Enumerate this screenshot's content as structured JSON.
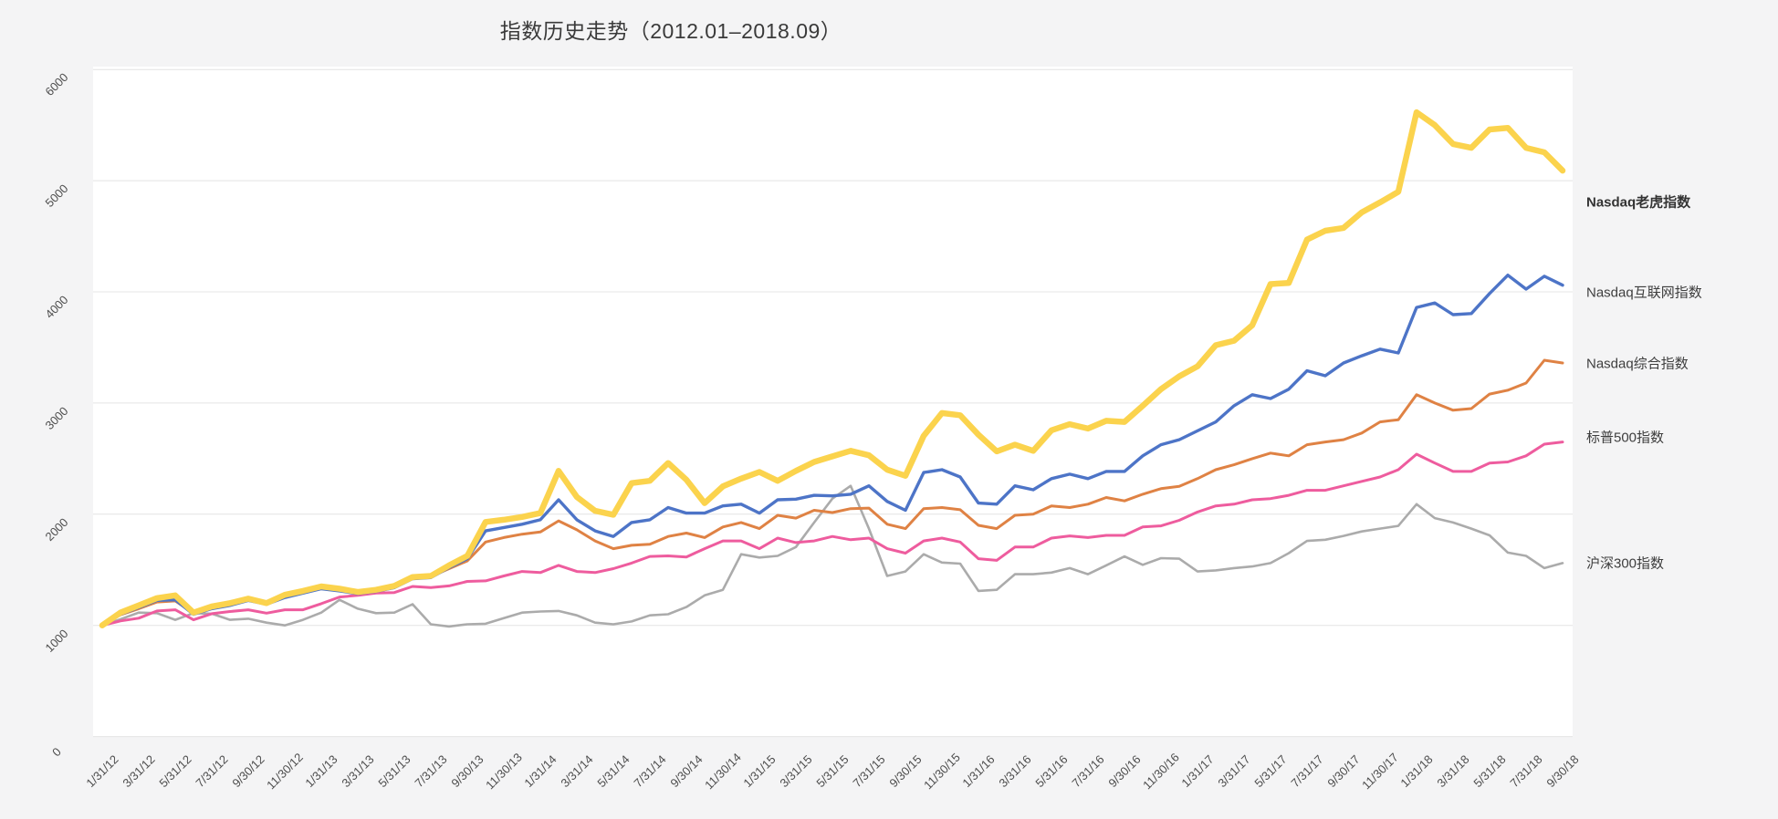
{
  "page": {
    "title": "指数历史走势（2012.01–2018.09）",
    "background_color": "#f4f4f5",
    "plot_background_color": "#ffffff",
    "gridline_color": "#e4e4e4"
  },
  "chart_data": {
    "type": "line",
    "title": "指数历史走势（2012.01–2018.09）",
    "xlabel": "",
    "ylabel": "",
    "ylim": [
      0,
      6000
    ],
    "y_ticks": [
      0,
      1000,
      2000,
      3000,
      4000,
      5000,
      6000
    ],
    "grid": "horizontal",
    "legend_position": "right-of-line-ends",
    "x": [
      "1/31/12",
      "2/29/12",
      "3/31/12",
      "4/30/12",
      "5/31/12",
      "6/30/12",
      "7/31/12",
      "8/31/12",
      "9/30/12",
      "10/31/12",
      "11/30/12",
      "12/31/12",
      "1/31/13",
      "2/28/13",
      "3/31/13",
      "4/30/13",
      "5/31/13",
      "6/30/13",
      "7/31/13",
      "8/31/13",
      "9/30/13",
      "10/31/13",
      "11/30/13",
      "12/31/13",
      "1/31/14",
      "2/28/14",
      "3/31/14",
      "4/30/14",
      "5/31/14",
      "6/30/14",
      "7/31/14",
      "8/31/14",
      "9/30/14",
      "10/31/14",
      "11/30/14",
      "12/31/14",
      "1/31/15",
      "2/28/15",
      "3/31/15",
      "4/30/15",
      "5/31/15",
      "6/30/15",
      "7/31/15",
      "8/31/15",
      "9/30/15",
      "10/31/15",
      "11/30/15",
      "12/31/15",
      "1/31/16",
      "2/29/16",
      "3/31/16",
      "4/30/16",
      "5/31/16",
      "6/30/16",
      "7/31/16",
      "8/31/16",
      "9/30/16",
      "10/31/16",
      "11/30/16",
      "12/31/16",
      "1/31/17",
      "2/28/17",
      "3/31/17",
      "4/30/17",
      "5/31/17",
      "6/30/17",
      "7/31/17",
      "8/31/17",
      "9/30/17",
      "10/31/17",
      "11/30/17",
      "12/31/17",
      "1/31/18",
      "2/28/18",
      "3/31/18",
      "4/30/18",
      "5/31/18",
      "6/30/18",
      "7/31/18",
      "8/31/18",
      "9/30/18"
    ],
    "x_tick_labels": [
      "1/31/12",
      "3/31/12",
      "5/31/12",
      "7/31/12",
      "9/30/12",
      "11/30/12",
      "1/31/13",
      "3/31/13",
      "5/31/13",
      "7/31/13",
      "9/30/13",
      "11/30/13",
      "1/31/14",
      "3/31/14",
      "5/31/14",
      "7/31/14",
      "9/30/14",
      "11/30/14",
      "1/31/15",
      "3/31/15",
      "5/31/15",
      "7/31/15",
      "9/30/15",
      "11/30/15",
      "1/31/16",
      "3/31/16",
      "5/31/16",
      "7/31/16",
      "9/30/16",
      "11/30/16",
      "1/31/17",
      "3/31/17",
      "5/31/17",
      "7/31/17",
      "9/30/17",
      "11/30/17",
      "1/31/18",
      "3/31/18",
      "5/31/18",
      "7/31/18",
      "9/30/18"
    ],
    "series": [
      {
        "name": "沪深300指数",
        "color": "#ababab",
        "line_width": 2.6,
        "bold_label": false,
        "values": [
          1000,
          1055,
          1115,
          1110,
          1050,
          1110,
          1105,
          1050,
          1060,
          1025,
          1000,
          1050,
          1115,
          1230,
          1150,
          1110,
          1115,
          1190,
          1010,
          990,
          1010,
          1015,
          1065,
          1115,
          1125,
          1130,
          1090,
          1025,
          1010,
          1035,
          1090,
          1100,
          1165,
          1270,
          1320,
          1640,
          1610,
          1625,
          1705,
          1925,
          2140,
          2255,
          1870,
          1445,
          1485,
          1640,
          1565,
          1555,
          1310,
          1320,
          1460,
          1460,
          1475,
          1515,
          1460,
          1540,
          1620,
          1545,
          1605,
          1600,
          1485,
          1495,
          1515,
          1530,
          1560,
          1650,
          1760,
          1770,
          1805,
          1845,
          1870,
          1895,
          2090,
          1965,
          1925,
          1870,
          1810,
          1655,
          1625,
          1515,
          1560
        ]
      },
      {
        "name": "标普500指数",
        "color": "#ee5c9e",
        "line_width": 3,
        "bold_label": false,
        "values": [
          1000,
          1040,
          1065,
          1130,
          1140,
          1050,
          1105,
          1125,
          1140,
          1110,
          1140,
          1140,
          1195,
          1255,
          1270,
          1290,
          1295,
          1350,
          1340,
          1355,
          1395,
          1400,
          1445,
          1485,
          1475,
          1540,
          1485,
          1475,
          1510,
          1560,
          1620,
          1625,
          1615,
          1690,
          1760,
          1760,
          1690,
          1785,
          1745,
          1760,
          1800,
          1770,
          1785,
          1690,
          1650,
          1760,
          1785,
          1750,
          1600,
          1585,
          1705,
          1705,
          1785,
          1805,
          1790,
          1810,
          1810,
          1885,
          1895,
          1945,
          2020,
          2075,
          2090,
          2130,
          2140,
          2170,
          2215,
          2215,
          2255,
          2295,
          2335,
          2400,
          2540,
          2460,
          2385,
          2385,
          2460,
          2470,
          2525,
          2630,
          2650
        ]
      },
      {
        "name": "Nasdaq综合指数",
        "color": "#df8244",
        "line_width": 3,
        "bold_label": false,
        "values": [
          1000,
          1095,
          1150,
          1210,
          1220,
          1110,
          1155,
          1185,
          1230,
          1195,
          1255,
          1300,
          1340,
          1320,
          1300,
          1320,
          1350,
          1420,
          1440,
          1510,
          1580,
          1750,
          1790,
          1820,
          1840,
          1940,
          1860,
          1760,
          1690,
          1720,
          1730,
          1800,
          1830,
          1790,
          1885,
          1925,
          1870,
          1990,
          1965,
          2035,
          2015,
          2050,
          2055,
          1910,
          1870,
          2050,
          2060,
          2040,
          1900,
          1870,
          1990,
          2000,
          2075,
          2060,
          2090,
          2150,
          2120,
          2180,
          2230,
          2250,
          2320,
          2400,
          2445,
          2500,
          2550,
          2525,
          2625,
          2650,
          2670,
          2730,
          2830,
          2850,
          3075,
          3000,
          2935,
          2950,
          3080,
          3115,
          3180,
          3385,
          3360
        ]
      },
      {
        "name": "Nasdaq互联网指数",
        "color": "#4d74c7",
        "line_width": 3.4,
        "bold_label": false,
        "values": [
          1000,
          1100,
          1160,
          1225,
          1230,
          1100,
          1150,
          1180,
          1225,
          1190,
          1250,
          1290,
          1330,
          1310,
          1285,
          1305,
          1340,
          1420,
          1430,
          1520,
          1600,
          1850,
          1880,
          1910,
          1950,
          2130,
          1950,
          1850,
          1800,
          1925,
          1950,
          2060,
          2010,
          2010,
          2075,
          2090,
          2010,
          2130,
          2135,
          2170,
          2165,
          2180,
          2255,
          2115,
          2035,
          2375,
          2400,
          2335,
          2100,
          2090,
          2255,
          2220,
          2320,
          2360,
          2320,
          2385,
          2385,
          2525,
          2625,
          2670,
          2750,
          2830,
          2975,
          3075,
          3040,
          3125,
          3290,
          3245,
          3360,
          3425,
          3485,
          3450,
          3860,
          3900,
          3795,
          3805,
          3985,
          4150,
          4025,
          4140,
          4060
        ]
      },
      {
        "name": "Nasdaq老虎指数",
        "color": "#fbd34d",
        "line_width": 6.5,
        "bold_label": true,
        "values": [
          1000,
          1115,
          1180,
          1245,
          1270,
          1115,
          1170,
          1200,
          1240,
          1200,
          1275,
          1310,
          1350,
          1330,
          1300,
          1320,
          1355,
          1435,
          1445,
          1540,
          1625,
          1930,
          1950,
          1975,
          2010,
          2390,
          2155,
          2030,
          1995,
          2280,
          2300,
          2460,
          2310,
          2100,
          2250,
          2320,
          2380,
          2300,
          2390,
          2470,
          2520,
          2570,
          2530,
          2400,
          2345,
          2705,
          2910,
          2890,
          2715,
          2565,
          2625,
          2570,
          2755,
          2810,
          2770,
          2840,
          2830,
          2975,
          3125,
          3240,
          3330,
          3520,
          3560,
          3700,
          4070,
          4080,
          4470,
          4550,
          4575,
          4715,
          4805,
          4900,
          5615,
          5500,
          5330,
          5295,
          5460,
          5475,
          5295,
          5255,
          5090
        ]
      }
    ]
  }
}
